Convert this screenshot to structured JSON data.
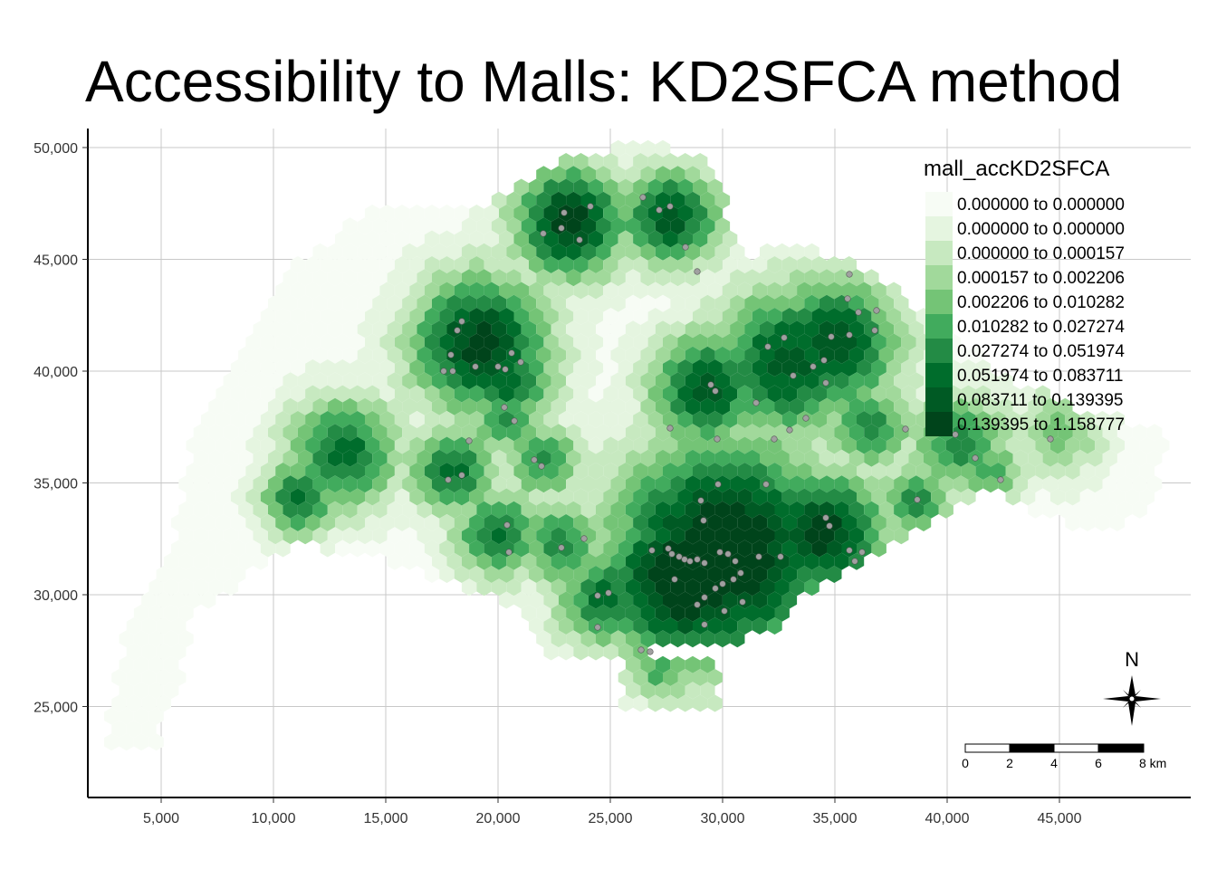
{
  "title": "Accessibility to Malls: KD2SFCA method",
  "axes": {
    "x_ticks": [
      "5,000",
      "10,000",
      "15,000",
      "20,000",
      "25,000",
      "30,000",
      "35,000",
      "40,000",
      "45,000"
    ],
    "x_values": [
      5000,
      10000,
      15000,
      20000,
      25000,
      30000,
      35000,
      40000,
      45000
    ],
    "y_ticks": [
      "50,000",
      "45,000",
      "40,000",
      "35,000",
      "30,000",
      "25,000"
    ],
    "y_values": [
      50000,
      45000,
      40000,
      35000,
      30000,
      25000
    ],
    "xlim": [
      2000,
      50500
    ],
    "ylim": [
      21000,
      51000
    ]
  },
  "legend": {
    "title": "mall_accKD2SFCA",
    "classes": [
      {
        "label": "0.000000 to 0.000000",
        "color": "#f7fcf5"
      },
      {
        "label": "0.000000 to 0.000000",
        "color": "#e5f5e0"
      },
      {
        "label": "0.000000 to 0.000157",
        "color": "#c7e9c0"
      },
      {
        "label": "0.000157 to 0.002206",
        "color": "#a1d99b"
      },
      {
        "label": "0.002206 to 0.010282",
        "color": "#74c476"
      },
      {
        "label": "0.010282 to 0.027274",
        "color": "#41ab5d"
      },
      {
        "label": "0.027274 to 0.051974",
        "color": "#238b45"
      },
      {
        "label": "0.051974 to 0.083711",
        "color": "#006d2c"
      },
      {
        "label": "0.083711 to 0.139395",
        "color": "#005a24"
      },
      {
        "label": "0.139395 to 1.158777",
        "color": "#00441b"
      }
    ]
  },
  "compass": {
    "label": "N"
  },
  "scale_bar": {
    "labels": [
      "0",
      "2",
      "4",
      "6",
      "8 km"
    ]
  },
  "mall_point_color": "#a0a0a0"
}
